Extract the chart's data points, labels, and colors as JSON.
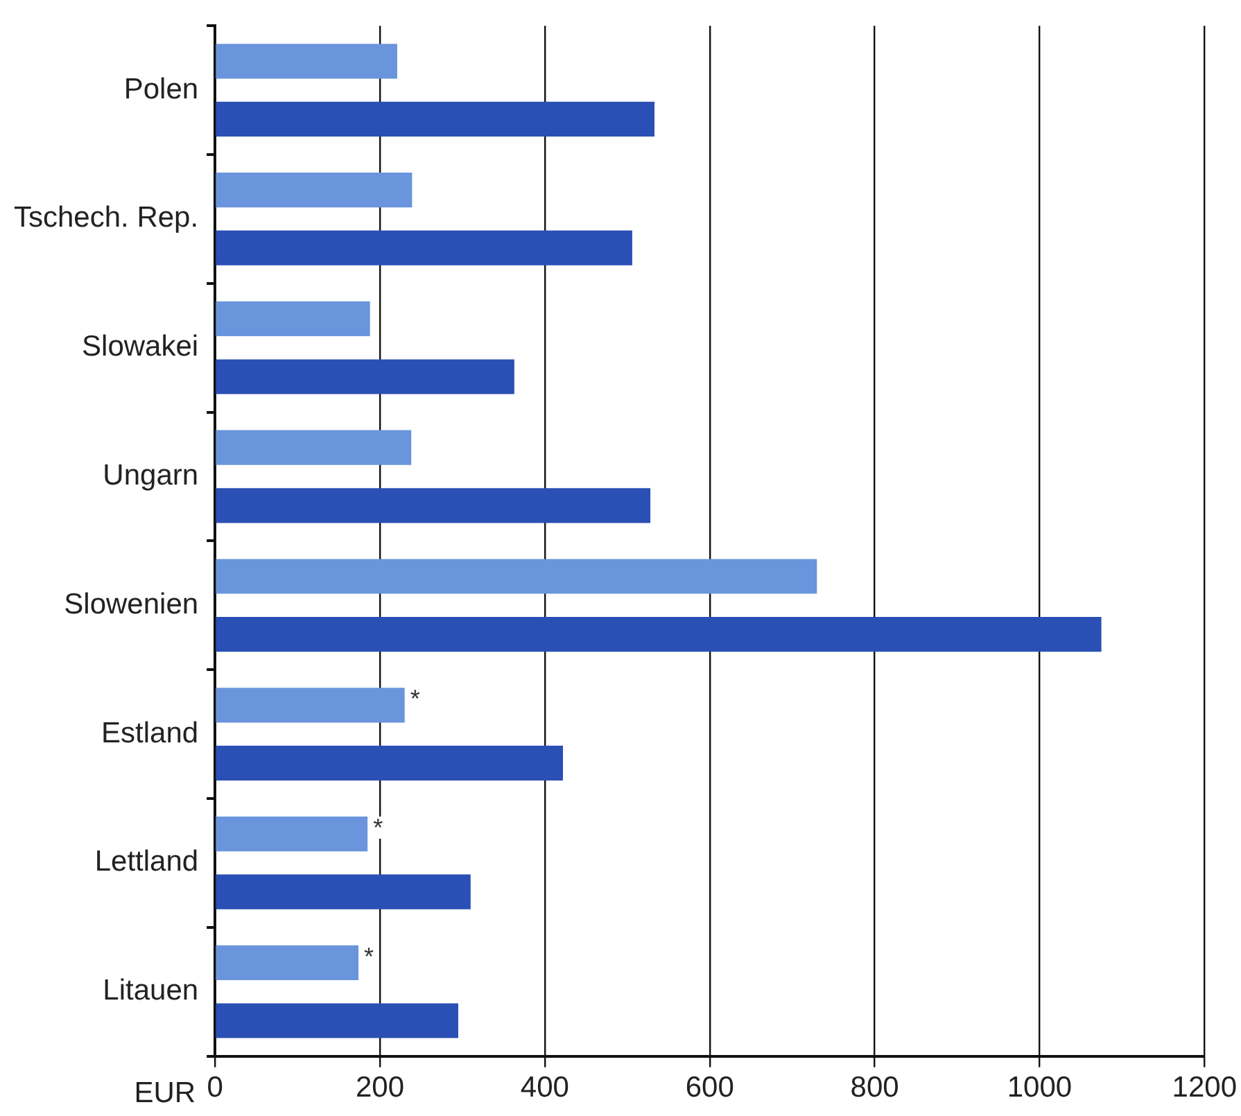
{
  "chart_data": {
    "type": "bar",
    "orientation": "horizontal",
    "xlabel": "EUR",
    "categories": [
      "Polen",
      "Tschech. Rep.",
      "Slowakei",
      "Ungarn",
      "Slowenien",
      "Estland",
      "Lettland",
      "Litauen"
    ],
    "series": [
      {
        "color": "#6a95dc",
        "values": [
          221,
          239,
          188,
          238,
          730,
          230,
          185,
          174
        ],
        "value_labels": [
          null,
          null,
          null,
          null,
          null,
          "*",
          "*",
          "*"
        ]
      },
      {
        "color": "#2a4fb5",
        "values": [
          533,
          506,
          363,
          528,
          1075,
          422,
          310,
          295
        ]
      }
    ],
    "xlim": [
      0,
      1200
    ],
    "xticks": [
      0,
      200,
      400,
      600,
      800,
      1000,
      1200
    ],
    "grid": "x",
    "legend": false
  }
}
